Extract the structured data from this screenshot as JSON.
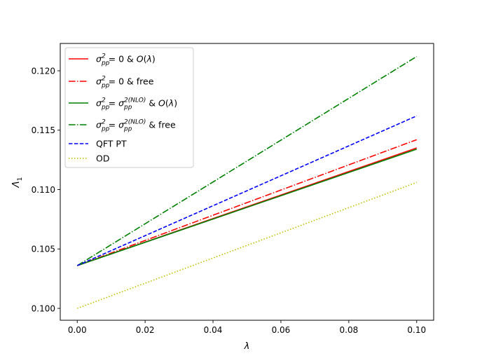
{
  "chart_data": {
    "type": "line",
    "title": "",
    "xlabel": "λ",
    "ylabel": "Λ",
    "ylabel_subscript": "1",
    "xlim": [
      -0.005,
      0.105
    ],
    "ylim": [
      0.099,
      0.1223
    ],
    "xticks": [
      0.0,
      0.02,
      0.04,
      0.06,
      0.08,
      0.1
    ],
    "xtick_labels": [
      "0.00",
      "0.02",
      "0.04",
      "0.06",
      "0.08",
      "0.10"
    ],
    "yticks": [
      0.1,
      0.105,
      0.11,
      0.115,
      0.12
    ],
    "ytick_labels": [
      "0.100",
      "0.105",
      "0.110",
      "0.115",
      "0.120"
    ],
    "grid": false,
    "legend_position": "upper-left",
    "series": [
      {
        "name": "σ²pp = 0 & O(λ)",
        "legend": {
          "parts": [
            {
              "t": "σ",
              "s": "italic"
            },
            {
              "t": "pp",
              "s": "sub"
            },
            {
              "t": "2",
              "s": "sup"
            },
            {
              "t": " = 0 & ",
              "s": "normal"
            },
            {
              "t": "O",
              "s": "italic"
            },
            {
              "t": "(",
              "s": "normal"
            },
            {
              "t": "λ",
              "s": "italic"
            },
            {
              "t": ")",
              "s": "normal"
            }
          ]
        },
        "color": "#ff0000",
        "style": "solid",
        "x": [
          0.0,
          0.1
        ],
        "y": [
          0.1036,
          0.1135
        ]
      },
      {
        "name": "σ²pp = 0 & free",
        "legend": {
          "parts": [
            {
              "t": "σ",
              "s": "italic"
            },
            {
              "t": "pp",
              "s": "sub"
            },
            {
              "t": "2",
              "s": "sup"
            },
            {
              "t": " = 0 & free",
              "s": "normal"
            }
          ]
        },
        "color": "#ff0000",
        "style": "dashdot",
        "x": [
          0.0,
          0.1
        ],
        "y": [
          0.1036,
          0.1142
        ]
      },
      {
        "name": "σ²pp = σ²(NLO)pp & O(λ)",
        "legend": {
          "parts": [
            {
              "t": "σ",
              "s": "italic"
            },
            {
              "t": "pp",
              "s": "sub"
            },
            {
              "t": "2",
              "s": "sup"
            },
            {
              "t": " = ",
              "s": "normal"
            },
            {
              "t": "σ",
              "s": "italic"
            },
            {
              "t": "pp",
              "s": "sub"
            },
            {
              "t": "2(NLO)",
              "s": "sup"
            },
            {
              "t": " & ",
              "s": "normal"
            },
            {
              "t": "O",
              "s": "italic"
            },
            {
              "t": "(",
              "s": "normal"
            },
            {
              "t": "λ",
              "s": "italic"
            },
            {
              "t": ")",
              "s": "normal"
            }
          ]
        },
        "color": "#008000",
        "style": "solid",
        "x": [
          0.0,
          0.1
        ],
        "y": [
          0.1036,
          0.1134
        ]
      },
      {
        "name": "σ²pp = σ²(NLO)pp & free",
        "legend": {
          "parts": [
            {
              "t": "σ",
              "s": "italic"
            },
            {
              "t": "pp",
              "s": "sub"
            },
            {
              "t": "2",
              "s": "sup"
            },
            {
              "t": " = ",
              "s": "normal"
            },
            {
              "t": "σ",
              "s": "italic"
            },
            {
              "t": "pp",
              "s": "sub"
            },
            {
              "t": "2(NLO)",
              "s": "sup"
            },
            {
              "t": " & free",
              "s": "normal"
            }
          ]
        },
        "color": "#008000",
        "style": "dashdot",
        "x": [
          0.0,
          0.1
        ],
        "y": [
          0.1036,
          0.1212
        ]
      },
      {
        "name": "QFT PT",
        "legend": {
          "parts": [
            {
              "t": "QFT PT",
              "s": "normal"
            }
          ]
        },
        "color": "#0000ff",
        "style": "dashed",
        "x": [
          0.0,
          0.1
        ],
        "y": [
          0.1036,
          0.1162
        ]
      },
      {
        "name": "OD",
        "legend": {
          "parts": [
            {
              "t": "OD",
              "s": "normal"
            }
          ]
        },
        "color": "#bfbf00",
        "style": "dotted",
        "x": [
          0.0,
          0.1
        ],
        "y": [
          0.1,
          0.1106
        ]
      }
    ]
  }
}
